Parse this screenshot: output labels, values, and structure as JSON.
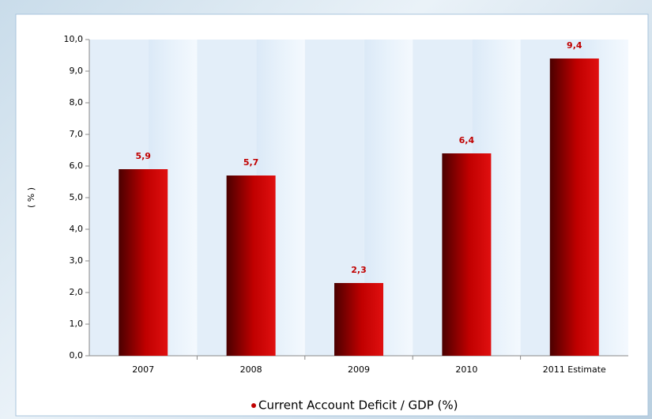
{
  "chart_data": {
    "type": "bar",
    "y_label": "( % )",
    "categories": [
      "2007",
      "2008",
      "2009",
      "2010",
      "2011 Estimate"
    ],
    "series": [
      {
        "name": "Current Account Deficit / GDP (%)",
        "color": "#c00000",
        "values": [
          5.9,
          5.7,
          2.3,
          6.4,
          9.4
        ],
        "value_labels": [
          "5,9",
          "5,7",
          "2,3",
          "6,4",
          "9,4"
        ]
      }
    ],
    "ylim": [
      0,
      10
    ],
    "yticks": [
      {
        "value": 0,
        "label": "0,0"
      },
      {
        "value": 1,
        "label": "1,0"
      },
      {
        "value": 2,
        "label": "2,0"
      },
      {
        "value": 3,
        "label": "3,0"
      },
      {
        "value": 4,
        "label": "4,0"
      },
      {
        "value": 5,
        "label": "5,0"
      },
      {
        "value": 6,
        "label": "6,0"
      },
      {
        "value": 7,
        "label": "7,0"
      },
      {
        "value": 8,
        "label": "8,0"
      },
      {
        "value": 9,
        "label": "9,0"
      },
      {
        "value": 10,
        "label": "10,0"
      }
    ]
  }
}
